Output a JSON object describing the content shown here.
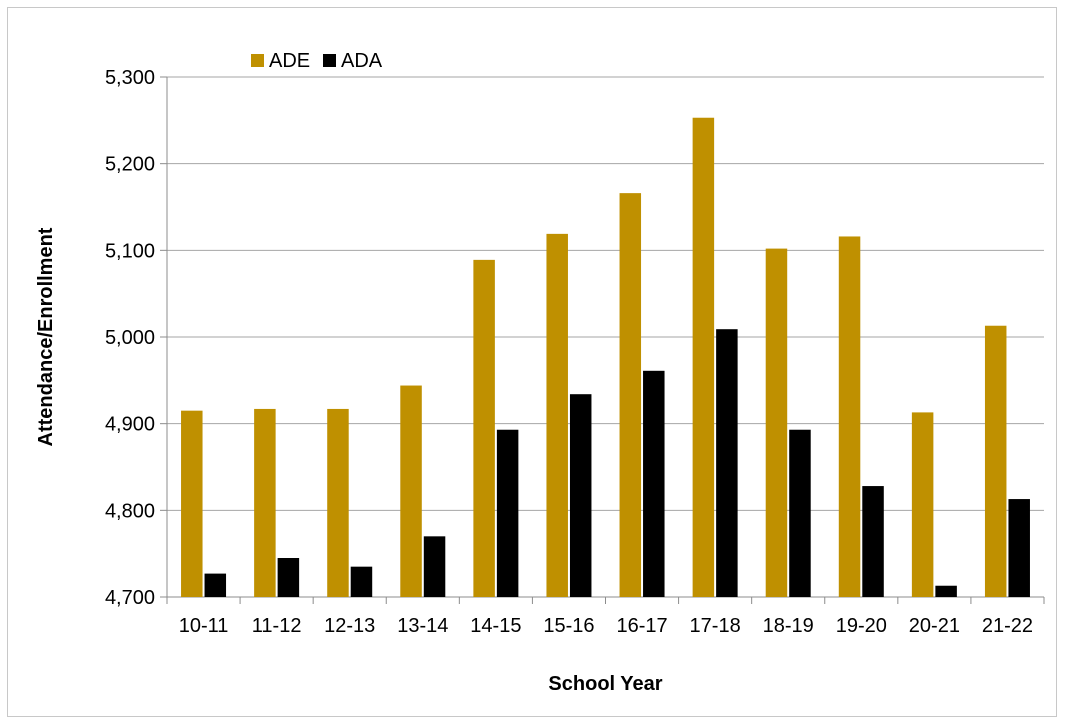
{
  "chart_data": {
    "type": "bar",
    "title": "",
    "xlabel": "School Year",
    "ylabel": "Attendance/Enrollment",
    "categories": [
      "10-11",
      "11-12",
      "12-13",
      "13-14",
      "14-15",
      "15-16",
      "16-17",
      "17-18",
      "18-19",
      "19-20",
      "20-21",
      "21-22"
    ],
    "series": [
      {
        "name": "ADE",
        "color": "#bf9000",
        "values": [
          4915,
          4917,
          4917,
          4944,
          5089,
          5119,
          5166,
          5253,
          5102,
          5116,
          4913,
          5013
        ]
      },
      {
        "name": "ADA",
        "color": "#000000",
        "values": [
          4727,
          4745,
          4735,
          4770,
          4893,
          4934,
          4961,
          5009,
          4893,
          4828,
          4713,
          4813
        ]
      }
    ],
    "ylim": [
      4700,
      5300
    ],
    "yticks": [
      4700,
      4800,
      4900,
      5000,
      5100,
      5200,
      5300
    ],
    "ytick_labels": [
      "4,700",
      "4,800",
      "4,900",
      "5,000",
      "5,100",
      "5,200",
      "5,300"
    ],
    "grid": true,
    "legend_position": "top-left"
  }
}
